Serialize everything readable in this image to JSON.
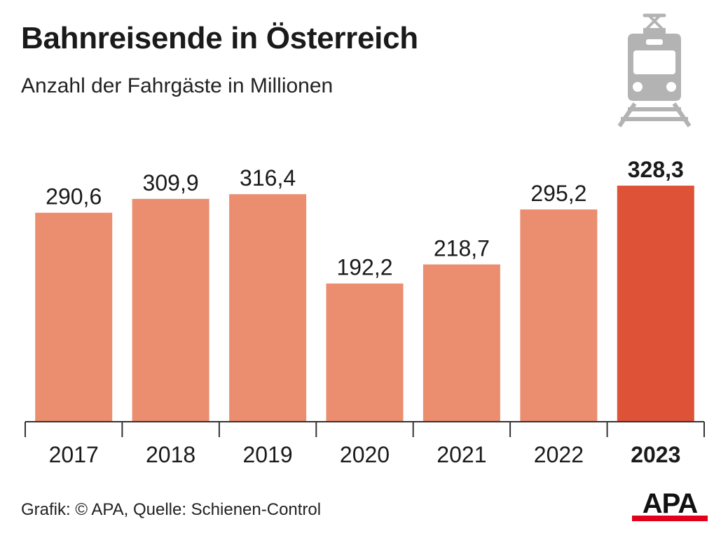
{
  "title": "Bahnreisende in Österreich",
  "subtitle": "Anzahl der Fahrgäste in Millionen",
  "source": "Grafik: © APA, Quelle: Schienen-Control",
  "logo_text": "APA",
  "icon": "train-icon",
  "colors": {
    "bar": "#eb8d6f",
    "highlight": "#de5237",
    "axis": "#333333",
    "icon": "#b3b3b3",
    "logo_red": "#e2001a"
  },
  "chart_data": {
    "type": "bar",
    "categories": [
      "2017",
      "2018",
      "2019",
      "2020",
      "2021",
      "2022",
      "2023"
    ],
    "values": [
      290.6,
      309.9,
      316.4,
      192.2,
      218.7,
      295.2,
      328.3
    ],
    "value_labels": [
      "290,6",
      "309,9",
      "316,4",
      "192,2",
      "218,7",
      "295,2",
      "328,3"
    ],
    "highlight_index": 6,
    "ylim": [
      0,
      350
    ],
    "grid": false,
    "legend": "none"
  }
}
